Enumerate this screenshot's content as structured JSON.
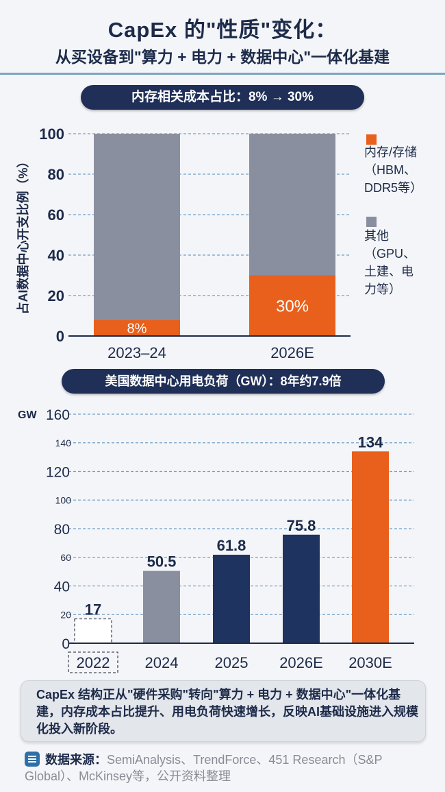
{
  "header": {
    "title": "CapEx 的\"性质\"变化：",
    "subtitle": "从买设备到\"算力 + 电力 + 数据中心\"一体化基建"
  },
  "chart_data": [
    {
      "type": "bar",
      "stacked": true,
      "title": "内存相关成本占比：8% → 30%",
      "ylabel": "占AI数据中心开支比例（%）",
      "categories": [
        "2023–24",
        "2026E"
      ],
      "ylim": [
        0,
        100
      ],
      "yticks": [
        0,
        20,
        40,
        60,
        80,
        100
      ],
      "grid": true,
      "legend_position": "right",
      "series": [
        {
          "name": "内存/存储",
          "name_note": "（HBM、DDR5等）",
          "values": [
            8,
            30
          ],
          "labels": [
            "8%",
            "30%"
          ],
          "color": "#e8601c"
        },
        {
          "name": "其他",
          "name_note": "（GPU、土建、电力等）",
          "values": [
            92,
            70
          ],
          "color": "#8a8fa0"
        }
      ],
      "legend_lines": [
        [
          "内存/存储",
          "（HBM、",
          "DDR5等）"
        ],
        [
          "其他",
          "（GPU、",
          "土建、电",
          "力等）"
        ]
      ]
    },
    {
      "type": "bar",
      "title": "美国数据中心用电负荷（GW）：8年约7.9倍",
      "yunit": "GW",
      "categories": [
        "2022",
        "2024",
        "2025",
        "2026E",
        "2030E"
      ],
      "values": [
        17,
        50.5,
        61.8,
        75.8,
        134
      ],
      "value_labels": [
        "17",
        "50.5",
        "61.8",
        "75.8",
        "134"
      ],
      "ylim": [
        0,
        160
      ],
      "yticks_major": [
        0,
        40,
        80,
        120,
        160
      ],
      "yticks_minor": [
        20,
        60,
        100,
        140
      ],
      "colors": [
        "none",
        "#8a8fa0",
        "#1f3361",
        "#1f3361",
        "#e8601c"
      ],
      "highlight_outline": "2022",
      "grid": true
    }
  ],
  "summary": {
    "text": "CapEx 结构正从\"硬件采购\"转向\"算力 + 电力 + 数据中心\"一体化基建，内存成本占比提升、用电负荷快速增长，反映AI基础设施进入规模化投入新阶段。"
  },
  "source": {
    "label": "数据来源：",
    "text": "SemiAnalysis、TrendForce、451 Research（S&P Global）、McKinsey等，公开资料整理"
  },
  "icons": {
    "source": "list-icon"
  }
}
